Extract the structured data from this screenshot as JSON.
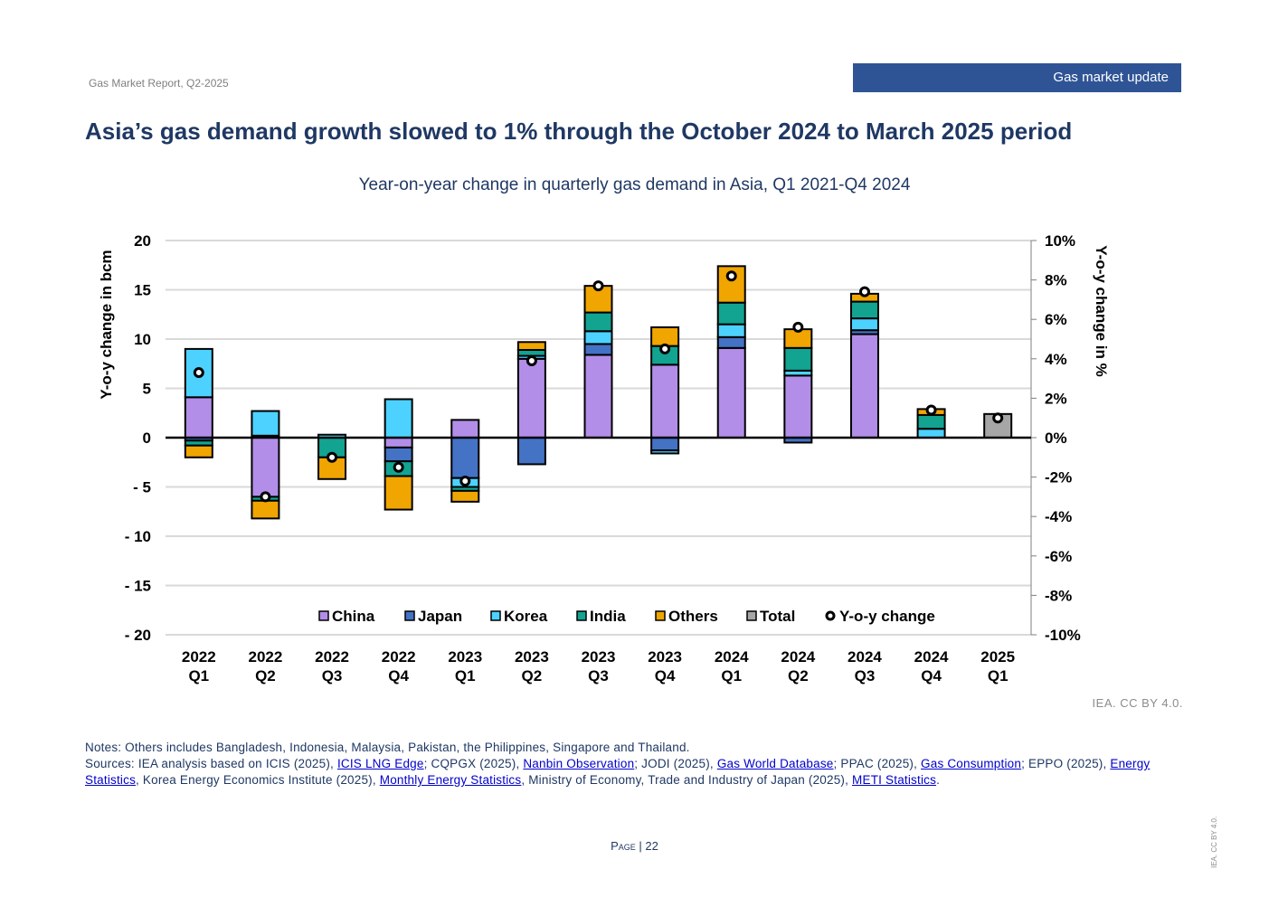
{
  "header": {
    "report": "Gas Market Report, Q2-2025",
    "section": "Gas market update"
  },
  "title": "Asia’s gas demand growth slowed to 1% through the October 2024 to March 2025 period",
  "chart_title": "Year-on-year change in quarterly gas demand in Asia, Q1 2021-Q4 2024",
  "credit": "IEA. CC BY 4.0.",
  "notes": {
    "line1": "Notes: Others includes Bangladesh, Indonesia, Malaysia, Pakistan, the Philippines, Singapore and Thailand.",
    "s0": "Sources: IEA analysis based on ICIS (2025), ",
    "l1": "ICIS LNG Edge",
    "s1": "; CQPGX (2025), ",
    "l2": "Nanbin Observation",
    "s2": "; JODI (2025), ",
    "l3": "Gas World Database",
    "s3": "; PPAC (2025), ",
    "l4": "Gas Consumption",
    "s4": "; EPPO (2025), ",
    "l5": "Energy Statistics",
    "s5": ", Korea Energy Economics Institute (2025), ",
    "l6": "Monthly Energy Statistics",
    "s6": ", Ministry of Economy, Trade and Industry of Japan (2025), ",
    "l7": "METI Statistics",
    "s7": "."
  },
  "page": {
    "label": "Page",
    "number": "| 22"
  },
  "side_credit": "IEA. CC BY 4.0.",
  "chart_data": {
    "type": "bar",
    "stacked": true,
    "categories": [
      [
        "2022",
        "Q1"
      ],
      [
        "2022",
        "Q2"
      ],
      [
        "2022",
        "Q3"
      ],
      [
        "2022",
        "Q4"
      ],
      [
        "2023",
        "Q1"
      ],
      [
        "2023",
        "Q2"
      ],
      [
        "2023",
        "Q3"
      ],
      [
        "2023",
        "Q4"
      ],
      [
        "2024",
        "Q1"
      ],
      [
        "2024",
        "Q2"
      ],
      [
        "2024",
        "Q3"
      ],
      [
        "2024",
        "Q4"
      ],
      [
        "2025",
        "Q1"
      ]
    ],
    "ylabel": "Y-o-y change in bcm",
    "y2label": "Y-o-y change in %",
    "ylim": [
      -20,
      20
    ],
    "y2lim": [
      -10,
      10
    ],
    "yticks": [
      "20",
      "15",
      "10",
      "5",
      "0",
      "- 5",
      "- 10",
      "- 15",
      "- 20"
    ],
    "y2ticks": [
      "10%",
      "8%",
      "6%",
      "4%",
      "2%",
      "0%",
      "-2%",
      "-4%",
      "-6%",
      "-8%",
      "-10%"
    ],
    "grid": true,
    "legend_position": "bottom-inside",
    "series": [
      {
        "name": "China",
        "color": "#b28ee8",
        "values": [
          4.1,
          -6.0,
          0.0,
          -1.0,
          1.8,
          8.0,
          8.4,
          7.4,
          9.1,
          6.3,
          10.5,
          0.0,
          0.0
        ]
      },
      {
        "name": "Japan",
        "color": "#4472c4",
        "values": [
          -0.3,
          0.2,
          0.0,
          -1.4,
          -4.1,
          -2.7,
          1.1,
          -1.3,
          1.1,
          -0.5,
          0.4,
          0.0,
          0.0
        ]
      },
      {
        "name": "Korea",
        "color": "#4dd2ff",
        "values": [
          4.9,
          2.5,
          0.3,
          3.9,
          -0.9,
          0.3,
          1.3,
          -0.3,
          1.3,
          0.5,
          1.2,
          0.9,
          0.0
        ]
      },
      {
        "name": "India",
        "color": "#12a391",
        "values": [
          -0.5,
          -0.4,
          -2.0,
          -1.5,
          -0.4,
          0.6,
          1.9,
          1.9,
          2.2,
          2.3,
          1.7,
          1.4,
          0.0
        ]
      },
      {
        "name": "Others",
        "color": "#f0a500",
        "values": [
          -1.2,
          -1.8,
          -2.2,
          -3.4,
          -1.1,
          0.8,
          2.7,
          1.9,
          3.7,
          1.9,
          0.8,
          0.6,
          0.0
        ]
      },
      {
        "name": "Total",
        "color": "#a6a6a6",
        "values": [
          0,
          0,
          0,
          0,
          0,
          0,
          0,
          0,
          0,
          0,
          0,
          0,
          2.4
        ]
      }
    ],
    "yoy_change_pct": {
      "name": "Y-o-y change",
      "axis": "right",
      "values": [
        3.3,
        -3.0,
        -1.0,
        -1.5,
        -2.2,
        3.9,
        7.7,
        4.5,
        8.2,
        5.6,
        7.4,
        1.4,
        1.0
      ]
    }
  }
}
